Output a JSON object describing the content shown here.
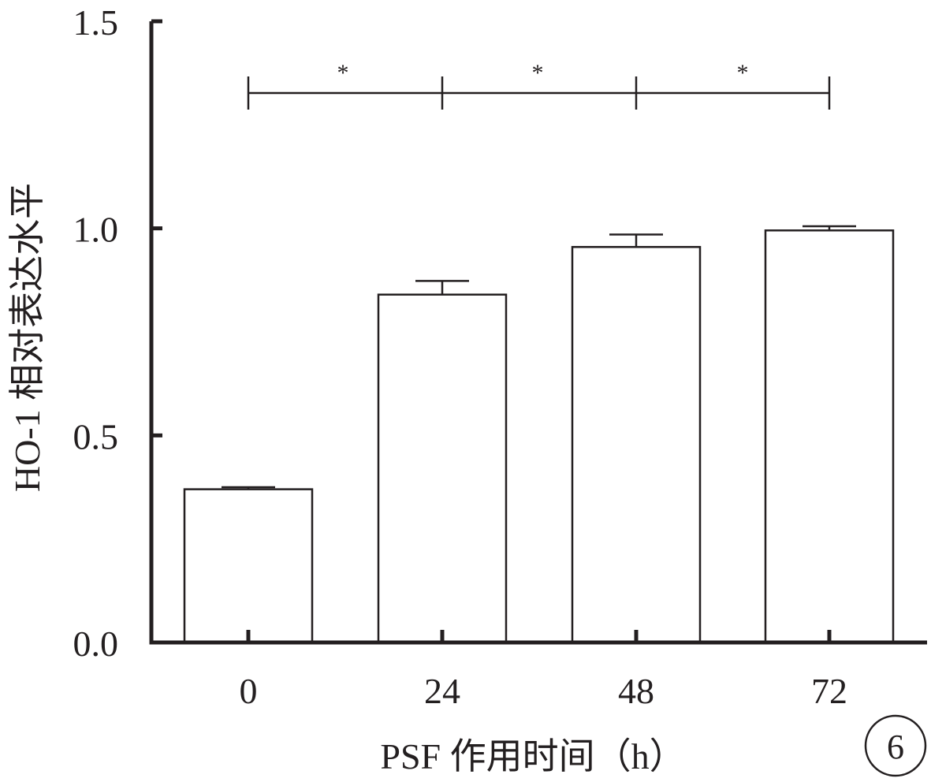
{
  "chart_data": {
    "type": "bar",
    "categories": [
      "0",
      "24",
      "48",
      "72"
    ],
    "values": [
      0.37,
      0.84,
      0.955,
      0.995
    ],
    "errors": [
      0.005,
      0.033,
      0.03,
      0.01
    ],
    "xlabel": "PSF 作用时间（h）",
    "ylabel": "HO-1 相对表达水平",
    "ylim": [
      0,
      1.5
    ],
    "yticks": [
      "0.0",
      "0.5",
      "1.0",
      "1.5"
    ],
    "grid": false,
    "significance": [
      {
        "from": "0",
        "to": "24",
        "label": "*"
      },
      {
        "from": "24",
        "to": "48",
        "label": "*"
      },
      {
        "from": "48",
        "to": "72",
        "label": "*"
      }
    ],
    "bar_fill": "#ffffff",
    "stroke_color": "#231f20"
  },
  "panel_label": "6"
}
